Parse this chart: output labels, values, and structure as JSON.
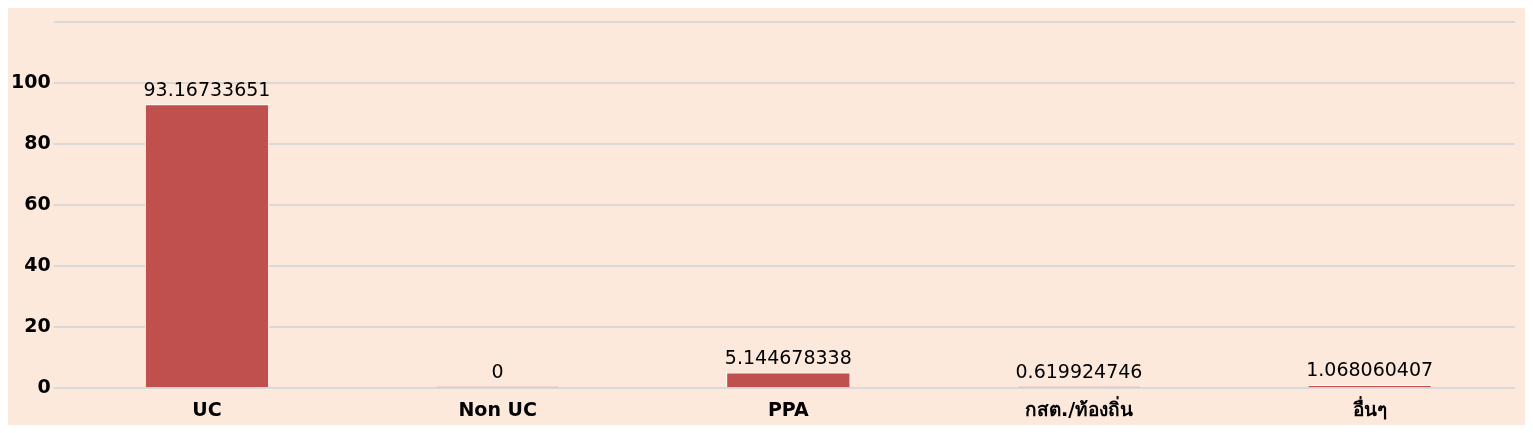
{
  "chart_data": {
    "type": "bar",
    "categories": [
      "UC",
      "Non UC",
      "PPA",
      "กสต./ท้องถิ่น",
      "อื่นๆ"
    ],
    "values": [
      93.16733651,
      0,
      5.144678338,
      0.619924746,
      1.068060407
    ],
    "color": "#c0504d",
    "ylim": [
      0,
      120
    ],
    "yticks": [
      0,
      20,
      40,
      60,
      80,
      100,
      {
        "value": 120,
        "label": null
      }
    ],
    "grid": "y",
    "data_labels": true,
    "legend": false
  }
}
